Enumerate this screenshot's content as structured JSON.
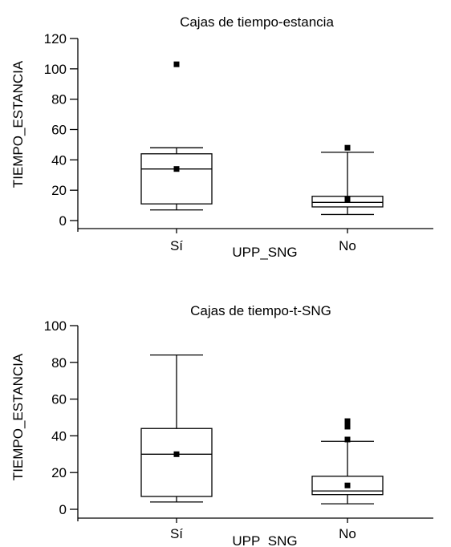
{
  "chart_data": [
    {
      "type": "boxplot",
      "title": "Cajas de tiempo-estancia",
      "xlabel": "UPP_SNG",
      "ylabel": "TIEMPO_ESTANCIA",
      "ylim": [
        0,
        120
      ],
      "yticks": [
        0,
        20,
        40,
        60,
        80,
        100,
        120
      ],
      "categories": [
        "Sí",
        "No"
      ],
      "boxes": [
        {
          "category": "Sí",
          "whisker_low": 7,
          "q1": 11,
          "median": 34,
          "q3": 44,
          "whisker_high": 48,
          "mean": 34,
          "outliers": [
            103
          ]
        },
        {
          "category": "No",
          "whisker_low": 4,
          "q1": 9,
          "median": 12,
          "q3": 16,
          "whisker_high": 45,
          "mean": 14,
          "outliers": [
            48
          ]
        }
      ],
      "grid": false
    },
    {
      "type": "boxplot",
      "title": "Cajas de tiempo-t-SNG",
      "xlabel": "UPP_SNG",
      "ylabel": "TIEMPO_ESTANCIA",
      "ylim": [
        0,
        100
      ],
      "yticks": [
        0,
        20,
        40,
        60,
        80,
        100
      ],
      "categories": [
        "Sí",
        "No"
      ],
      "boxes": [
        {
          "category": "Sí",
          "whisker_low": 4,
          "q1": 7,
          "median": 30,
          "q3": 44,
          "whisker_high": 84,
          "mean": 30,
          "outliers": []
        },
        {
          "category": "No",
          "whisker_low": 3,
          "q1": 8,
          "median": 10,
          "q3": 18,
          "whisker_high": 37,
          "mean": 13,
          "outliers": [
            38,
            45,
            48
          ]
        }
      ],
      "grid": false
    }
  ]
}
